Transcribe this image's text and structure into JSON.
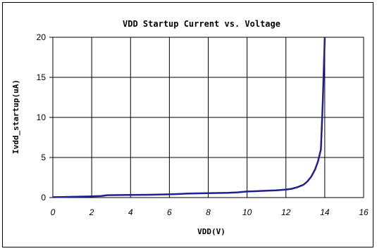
{
  "chart_data": {
    "type": "line",
    "title": "VDD Startup Current vs. Voltage",
    "xlabel": "VDD(V)",
    "ylabel": "Ivdd_startup(uA)",
    "xlim": [
      0,
      16
    ],
    "ylim": [
      0,
      20
    ],
    "xticks": [
      "0",
      "2",
      "4",
      "6",
      "8",
      "10",
      "12",
      "14",
      "16"
    ],
    "yticks": [
      "0",
      "5",
      "10",
      "15",
      "20"
    ],
    "grid": true,
    "legend": "none",
    "series": [
      {
        "color": "#1f1f8f",
        "x": [
          0,
          0.5,
          1,
          1.5,
          2,
          2.5,
          2.8,
          3.5,
          4,
          5,
          6,
          6.5,
          7,
          8,
          9,
          9.5,
          10,
          10.5,
          11,
          11.5,
          12,
          12.3,
          12.6,
          12.9,
          13.1,
          13.3,
          13.5,
          13.65,
          13.8,
          13.9,
          14.0
        ],
        "y": [
          0.05,
          0.07,
          0.1,
          0.12,
          0.15,
          0.2,
          0.3,
          0.32,
          0.33,
          0.35,
          0.4,
          0.45,
          0.5,
          0.55,
          0.6,
          0.65,
          0.75,
          0.8,
          0.85,
          0.9,
          1.0,
          1.1,
          1.3,
          1.6,
          2.0,
          2.6,
          3.5,
          4.5,
          6.0,
          12.0,
          20.0
        ]
      }
    ]
  }
}
